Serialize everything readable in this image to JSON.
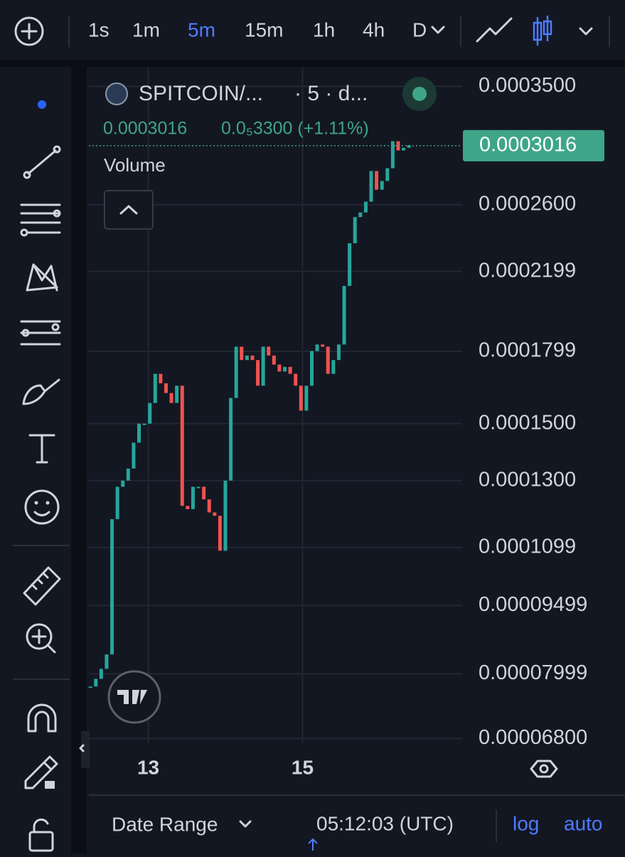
{
  "toolbar": {
    "intervals": [
      "1s",
      "1m",
      "5m",
      "15m",
      "1h",
      "4h",
      "D"
    ],
    "active": 2
  },
  "legend": {
    "symbol": "SPITCOIN/...",
    "meta": "· 5 · d...",
    "price": "0.0003016",
    "change": "0.0₅3300 (+1.11%)",
    "study": "Volume"
  },
  "chart_data": {
    "type": "candlestick",
    "log_scale": true,
    "grid": true,
    "up_color": "#26a69a",
    "down_color": "#ef5350",
    "x": [
      12.25,
      12.32,
      12.39,
      12.46,
      12.53,
      12.6,
      12.67,
      12.74,
      12.81,
      12.88,
      12.95,
      13.02,
      13.09,
      13.16,
      13.23,
      13.3,
      13.37,
      13.44,
      13.51,
      13.58,
      13.65,
      13.72,
      13.79,
      13.86,
      13.93,
      14.0,
      14.07,
      14.14,
      14.21,
      14.28,
      14.35,
      14.42,
      14.49,
      14.56,
      14.63,
      14.7,
      14.77,
      14.84,
      14.91,
      14.98,
      15.05,
      15.12,
      15.19,
      15.26,
      15.33,
      15.4,
      15.47,
      15.54,
      15.61,
      15.68,
      15.75,
      15.82,
      15.89,
      15.96,
      16.03,
      16.1,
      16.17,
      16.24,
      16.31,
      16.38
    ],
    "values": [
      7.75e-05,
      7.9e-05,
      8.1e-05,
      8.4e-05,
      0.000118,
      0.000128,
      0.00013,
      0.000134,
      0.000143,
      0.00015,
      0.00015,
      0.000158,
      0.00017,
      0.000166,
      0.000162,
      0.000158,
      0.000165,
      0.000122,
      0.000121,
      0.000128,
      0.000128,
      0.000124,
      0.00012,
      0.000119,
      0.000109,
      0.00013,
      0.00016,
      0.000182,
      0.000176,
      0.000178,
      0.000176,
      0.000165,
      0.000182,
      0.000178,
      0.000174,
      0.000171,
      0.000173,
      0.00017,
      0.000165,
      0.000155,
      0.000165,
      0.00018,
      0.000183,
      0.000182,
      0.00017,
      0.000176,
      0.000183,
      0.000212,
      0.000236,
      0.000252,
      0.000255,
      0.000262,
      0.000283,
      0.00027,
      0.000276,
      0.000285,
      0.000305,
      0.000298,
      0.0003,
      0.000302
    ],
    "last_price": 0.0003016,
    "xlim": [
      12.23,
      17.07
    ],
    "xticks": [
      13,
      15
    ],
    "ylim": [
      6.72e-05,
      0.000367
    ],
    "yticks": [
      {
        "value": 0.00035,
        "label": "0.0003500"
      },
      {
        "value": 0.00026,
        "label": "0.0002600"
      },
      {
        "value": 0.0002199,
        "label": "0.0002199"
      },
      {
        "value": 0.0001799,
        "label": "0.0001799"
      },
      {
        "value": 0.00015,
        "label": "0.0001500"
      },
      {
        "value": 0.00013,
        "label": "0.0001300"
      },
      {
        "value": 0.0001099,
        "label": "0.0001099"
      },
      {
        "value": 9.499e-05,
        "label": "0.00009499"
      },
      {
        "value": 7.999e-05,
        "label": "0.00007999"
      },
      {
        "value": 6.8e-05,
        "label": "0.00006800"
      }
    ]
  },
  "footer": {
    "date_range": "Date Range",
    "time": "05:12:03 (UTC)",
    "log": "log",
    "auto": "auto"
  }
}
